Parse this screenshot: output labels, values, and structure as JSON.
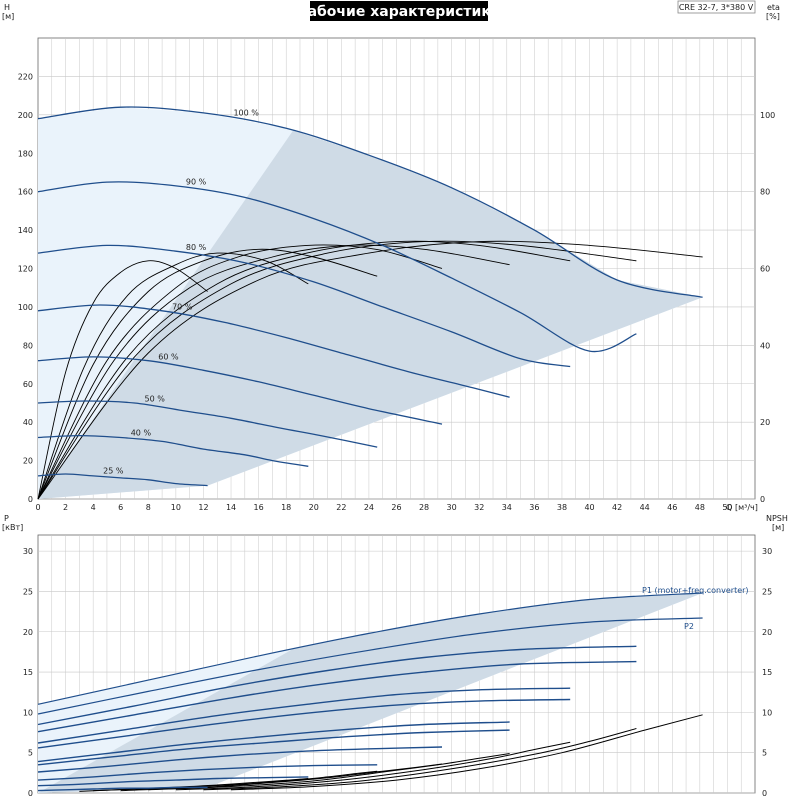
{
  "title": "Рабочие характеристики",
  "model": "CRE 32-7, 3*380 V",
  "colors": {
    "pump_curve": "#1f4e8c",
    "eff_curve": "#000000",
    "area_dark": "#cfdbe6",
    "area_light": "#eaf3fb",
    "grid": "#c8c8c8"
  },
  "x_axis": {
    "label": "Q",
    "unit": "[м³/ч]",
    "ticks": [
      "0",
      "2",
      "4",
      "6",
      "8",
      "10",
      "12",
      "14",
      "16",
      "18",
      "20",
      "22",
      "24",
      "26",
      "28",
      "30",
      "32",
      "34",
      "36",
      "38",
      "40",
      "42",
      "44",
      "46",
      "48",
      "50"
    ],
    "range": [
      0,
      52
    ]
  },
  "chart_data": [
    {
      "type": "line",
      "name": "head",
      "ylabel": "H",
      "yunit": "[м]",
      "ylim": [
        0,
        240
      ],
      "yticks": [
        "0",
        "20",
        "40",
        "60",
        "80",
        "100",
        "120",
        "140",
        "160",
        "180",
        "200",
        "220"
      ],
      "y2label": "eta",
      "y2unit": "[%]",
      "y2ticks": [
        "0",
        "20",
        "40",
        "60",
        "80",
        "100"
      ],
      "series": [
        {
          "name": "100 %",
          "x": [
            0,
            6,
            12,
            18,
            24,
            30,
            36,
            42,
            48.2
          ],
          "values": [
            198,
            204,
            201,
            193,
            179,
            162,
            140,
            114,
            105
          ]
        },
        {
          "name": "90 %",
          "x": [
            0,
            5,
            10,
            15,
            20,
            25,
            30,
            35,
            40,
            43.4
          ],
          "values": [
            160,
            165,
            163,
            157,
            146,
            132,
            115,
            97,
            77,
            86
          ]
        },
        {
          "name": "80 %",
          "x": [
            0,
            5,
            10,
            15,
            20,
            25,
            30,
            35,
            38.6
          ],
          "values": [
            128,
            132,
            129,
            123,
            113,
            100,
            87,
            73,
            69
          ]
        },
        {
          "name": "70 %",
          "x": [
            0,
            4.5,
            9,
            13.5,
            18,
            22.5,
            27,
            31.5,
            34.2
          ],
          "values": [
            98,
            101,
            98,
            92,
            84,
            75,
            66,
            58,
            53
          ]
        },
        {
          "name": "60 %",
          "x": [
            0,
            4,
            8,
            12,
            16,
            20,
            24,
            29.3
          ],
          "values": [
            72,
            74,
            72,
            67,
            61,
            54,
            47,
            39
          ]
        },
        {
          "name": "50 %",
          "x": [
            0,
            3.5,
            7,
            10.5,
            14,
            17.5,
            20.5,
            24.6
          ],
          "values": [
            50,
            51,
            50,
            46,
            42,
            37,
            33,
            27
          ]
        },
        {
          "name": "40 %",
          "x": [
            0,
            3,
            6,
            9,
            12,
            15,
            17,
            19.6
          ],
          "values": [
            32,
            33,
            32,
            30,
            26,
            23,
            20,
            17
          ]
        },
        {
          "name": "25 %",
          "x": [
            0,
            2,
            4,
            6,
            8,
            10,
            12.3
          ],
          "values": [
            12,
            13,
            12,
            11,
            10,
            8,
            7
          ]
        }
      ],
      "efficiency_series": [
        {
          "x": [
            0,
            8,
            16,
            24,
            32,
            40,
            48.2
          ],
          "values": [
            0,
            38,
            57,
            64,
            67,
            66,
            63
          ]
        },
        {
          "x": [
            0,
            7,
            14,
            21,
            28,
            35,
            43.4
          ],
          "values": [
            0,
            37,
            56,
            64,
            67,
            66,
            62
          ]
        },
        {
          "x": [
            0,
            6.5,
            13,
            19.5,
            26,
            32,
            38.6
          ],
          "values": [
            0,
            37,
            56,
            64,
            67,
            66,
            62
          ]
        },
        {
          "x": [
            0,
            5.5,
            11,
            17,
            22.5,
            28,
            34.2
          ],
          "values": [
            0,
            36,
            55,
            63,
            66,
            65,
            61
          ]
        },
        {
          "x": [
            0,
            5,
            10,
            14.5,
            19.5,
            24.5,
            29.3
          ],
          "values": [
            0,
            36,
            55,
            63,
            66,
            65,
            60
          ]
        },
        {
          "x": [
            0,
            4,
            8,
            12,
            16,
            20,
            24.6
          ],
          "values": [
            0,
            35,
            54,
            62,
            65,
            63,
            58
          ]
        },
        {
          "x": [
            0,
            3.3,
            6.5,
            10,
            13,
            16.5,
            19.6
          ],
          "values": [
            0,
            34,
            53,
            61,
            64,
            62,
            56
          ]
        },
        {
          "x": [
            0,
            2,
            4,
            6,
            8,
            10,
            12.3
          ],
          "values": [
            0,
            33,
            51,
            59,
            62,
            60,
            54
          ]
        }
      ]
    },
    {
      "type": "line",
      "name": "power",
      "ylabel": "P",
      "yunit": "[кВт]",
      "ylim": [
        0,
        32
      ],
      "yticks": [
        "0",
        "5",
        "10",
        "15",
        "20",
        "25",
        "30"
      ],
      "y2label": "NPSH",
      "y2unit": "[м]",
      "y2ticks": [
        "0",
        "5",
        "10",
        "15",
        "20",
        "25",
        "30"
      ],
      "p1_label": "P1 (motor+freq.converter)",
      "p2_label": "P2",
      "series": [
        {
          "name": "P1 (motor+freq.converter)",
          "x": [
            0,
            8,
            16,
            24,
            32,
            40,
            48.2
          ],
          "values": [
            11.0,
            14.0,
            17.0,
            19.8,
            22.2,
            24.0,
            24.8
          ]
        },
        {
          "name": "P2",
          "x": [
            0,
            8,
            16,
            24,
            32,
            40,
            48.2
          ],
          "values": [
            9.8,
            12.6,
            15.3,
            17.7,
            19.8,
            21.2,
            21.7
          ]
        },
        {
          "x": [
            0,
            7,
            14,
            21,
            28,
            35,
            43.4
          ],
          "values": [
            8.5,
            10.8,
            13.2,
            15.2,
            16.8,
            17.8,
            18.2
          ]
        },
        {
          "x": [
            0,
            7,
            14,
            21,
            28,
            35,
            43.4
          ],
          "values": [
            7.6,
            9.7,
            11.8,
            13.6,
            15.0,
            16.0,
            16.3
          ]
        },
        {
          "x": [
            0,
            6.5,
            13,
            19.5,
            26,
            32,
            38.6
          ],
          "values": [
            6.2,
            7.9,
            9.6,
            11.0,
            12.2,
            12.8,
            13.0
          ]
        },
        {
          "x": [
            0,
            6.5,
            13,
            19.5,
            26,
            32,
            38.6
          ],
          "values": [
            5.6,
            7.1,
            8.6,
            9.9,
            10.9,
            11.4,
            11.6
          ]
        },
        {
          "x": [
            0,
            5.5,
            11,
            17,
            22.5,
            28,
            34.2
          ],
          "values": [
            3.9,
            5.0,
            6.1,
            7.1,
            7.9,
            8.5,
            8.8
          ]
        },
        {
          "x": [
            0,
            5.5,
            11,
            17,
            22.5,
            28,
            34.2
          ],
          "values": [
            3.5,
            4.5,
            5.5,
            6.3,
            7.0,
            7.5,
            7.8
          ]
        },
        {
          "x": [
            0,
            5,
            10,
            14.5,
            19.5,
            24.5,
            29.3
          ],
          "values": [
            2.6,
            3.3,
            4.1,
            4.7,
            5.2,
            5.5,
            5.7
          ]
        },
        {
          "x": [
            0,
            4,
            8,
            12,
            16,
            20,
            24.6
          ],
          "values": [
            1.6,
            2.0,
            2.5,
            2.9,
            3.2,
            3.4,
            3.5
          ]
        },
        {
          "x": [
            0,
            3.3,
            6.5,
            10,
            13,
            16.5,
            19.6
          ],
          "values": [
            0.9,
            1.1,
            1.4,
            1.6,
            1.8,
            1.9,
            2.0
          ]
        },
        {
          "x": [
            0,
            2,
            4,
            6,
            8,
            10,
            12.3
          ],
          "values": [
            0.3,
            0.4,
            0.5,
            0.6,
            0.6,
            0.7,
            0.7
          ]
        }
      ],
      "npsh_series": [
        {
          "x": [
            14,
            20,
            26,
            32,
            38,
            44,
            48.2
          ],
          "values": [
            0.4,
            0.8,
            1.6,
            3.0,
            5.0,
            7.8,
            9.7
          ]
        },
        {
          "x": [
            12,
            18,
            24,
            30,
            36,
            40,
            43.4
          ],
          "values": [
            0.4,
            0.8,
            1.6,
            3.0,
            4.8,
            6.4,
            8.0
          ]
        },
        {
          "x": [
            10,
            16,
            22,
            28,
            33,
            36,
            38.6
          ],
          "values": [
            0.4,
            0.8,
            1.6,
            2.9,
            4.3,
            5.4,
            6.3
          ]
        },
        {
          "x": [
            8,
            14,
            20,
            25,
            29,
            32,
            34.2
          ],
          "values": [
            0.4,
            0.8,
            1.5,
            2.6,
            3.5,
            4.3,
            4.9
          ]
        },
        {
          "x": [
            6,
            12,
            17,
            21,
            25,
            27.5,
            29.3
          ],
          "values": [
            0.3,
            0.7,
            1.3,
            1.9,
            2.7,
            3.2,
            3.6
          ]
        },
        {
          "x": [
            4,
            9,
            14,
            18,
            21,
            23,
            24.6
          ],
          "values": [
            0.3,
            0.6,
            1.0,
            1.5,
            2.0,
            2.4,
            2.7
          ]
        },
        {
          "x": [
            3,
            7,
            11,
            14,
            16.5,
            18.2,
            19.6
          ],
          "values": [
            0.2,
            0.5,
            0.8,
            1.1,
            1.4,
            1.6,
            1.8
          ]
        }
      ]
    }
  ]
}
